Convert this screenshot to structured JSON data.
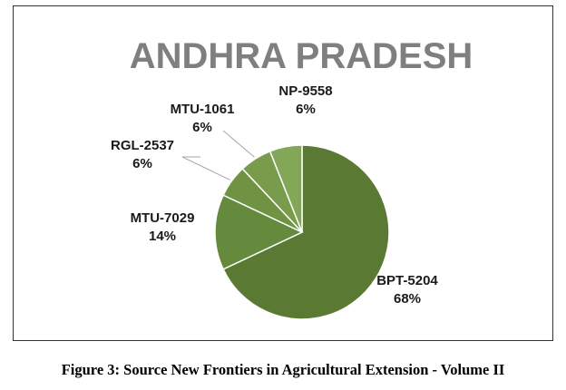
{
  "caption": "Figure 3: Source New Frontiers in Agricultural Extension - Volume II",
  "chart_data": {
    "type": "pie",
    "title": "ANDHRA PRADESH",
    "slices": [
      {
        "label": "BPT-5204",
        "value": 68,
        "percent_label": "68%",
        "color": "#5a7a34"
      },
      {
        "label": "MTU-7029",
        "value": 14,
        "percent_label": "14%",
        "color": "#668a3d"
      },
      {
        "label": "RGL-2537",
        "value": 6,
        "percent_label": "6%",
        "color": "#6f9343"
      },
      {
        "label": "MTU-1061",
        "value": 6,
        "percent_label": "6%",
        "color": "#789c4b"
      },
      {
        "label": "NP-9558",
        "value": 6,
        "percent_label": "6%",
        "color": "#83a757"
      }
    ],
    "legend": "none",
    "data_labels": "outside with leader lines"
  }
}
